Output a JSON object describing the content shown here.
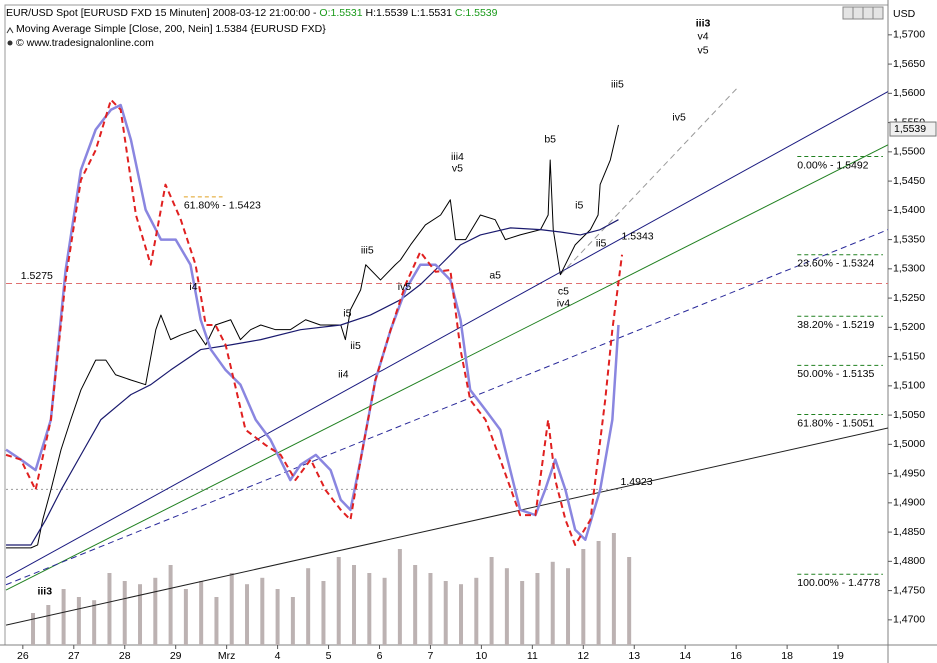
{
  "chart_data": {
    "type": "line",
    "header": {
      "instrument": "EUR/USD Spot [EURUSD FXD  15 Minuten] 2008-03-12 21:00:00 - ",
      "open": "O:1.5531",
      "high_low": " H:1.5539 L:1.5531 ",
      "close": "C:1.5539",
      "indicator": "Moving Average Simple [Close, 200, Nein] 1.5384 {EURUSD FXD}",
      "source": "© www.tradesignalonline.com"
    },
    "axis_unit": "USD",
    "xlim": [
      -0.35,
      16.98
    ],
    "ylim": [
      1.4657,
      1.5751
    ],
    "y2lim": [
      0,
      400
    ],
    "xticks": [
      {
        "value": 0,
        "label": "26"
      },
      {
        "value": 1,
        "label": "27"
      },
      {
        "value": 2,
        "label": "28"
      },
      {
        "value": 3,
        "label": "29"
      },
      {
        "value": 4,
        "label": "Mrz"
      },
      {
        "value": 5,
        "label": "4"
      },
      {
        "value": 6,
        "label": "5"
      },
      {
        "value": 7,
        "label": "6"
      },
      {
        "value": 8,
        "label": "7"
      },
      {
        "value": 9,
        "label": "10"
      },
      {
        "value": 10,
        "label": "11"
      },
      {
        "value": 11,
        "label": "12"
      },
      {
        "value": 12,
        "label": "13"
      },
      {
        "value": 13,
        "label": "14"
      },
      {
        "value": 14,
        "label": "16"
      },
      {
        "value": 15,
        "label": "18"
      },
      {
        "value": 16,
        "label": "19"
      }
    ],
    "yticks": [
      {
        "value": 1.47,
        "label": "1,4700"
      },
      {
        "value": 1.475,
        "label": "1,4750"
      },
      {
        "value": 1.48,
        "label": "1,4800"
      },
      {
        "value": 1.485,
        "label": "1,4850"
      },
      {
        "value": 1.49,
        "label": "1,4900"
      },
      {
        "value": 1.495,
        "label": "1,4950"
      },
      {
        "value": 1.5,
        "label": "1,5000"
      },
      {
        "value": 1.505,
        "label": "1,5050"
      },
      {
        "value": 1.51,
        "label": "1,5100"
      },
      {
        "value": 1.515,
        "label": "1,5150"
      },
      {
        "value": 1.52,
        "label": "1,5200"
      },
      {
        "value": 1.525,
        "label": "1,5250"
      },
      {
        "value": 1.53,
        "label": "1,5300"
      },
      {
        "value": 1.535,
        "label": "1,5350"
      },
      {
        "value": 1.54,
        "label": "1,5400"
      },
      {
        "value": 1.545,
        "label": "1,5450"
      },
      {
        "value": 1.55,
        "label": "1,5500"
      },
      {
        "value": 1.555,
        "label": "1,5550"
      },
      {
        "value": 1.56,
        "label": "1,5600"
      },
      {
        "value": 1.565,
        "label": "1,5650"
      },
      {
        "value": 1.57,
        "label": "1,5700"
      }
    ],
    "last_price": {
      "value": 1.5539,
      "label": "1,5539"
    },
    "series": [
      {
        "color": "#000000",
        "width": 1,
        "style": "solid",
        "x": [
          -0.33,
          0.16,
          0.29,
          0.39,
          0.55,
          0.75,
          0.94,
          1.14,
          1.43,
          1.63,
          1.82,
          2.12,
          2.41,
          2.61,
          2.71,
          2.9,
          3.1,
          3.39,
          3.59,
          3.78,
          4.08,
          4.27,
          4.47,
          4.67,
          4.96,
          5.25,
          5.55,
          5.84,
          6.24,
          6.33,
          6.43,
          6.63,
          6.73,
          7.02,
          7.31,
          7.41,
          7.61,
          7.9,
          8.2,
          8.39,
          8.49,
          8.69,
          8.98,
          9.27,
          9.47,
          9.76,
          10.16,
          10.31,
          10.35,
          10.41,
          10.55,
          10.84,
          11.14,
          11.29,
          11.33,
          11.53,
          11.69
        ],
        "values": [
          1.4823,
          1.4823,
          1.4828,
          1.4871,
          1.4922,
          1.4991,
          1.5042,
          1.5093,
          1.5144,
          1.5144,
          1.5119,
          1.511,
          1.5102,
          1.5196,
          1.5221,
          1.5179,
          1.5187,
          1.5196,
          1.517,
          1.5204,
          1.5213,
          1.5179,
          1.5196,
          1.5204,
          1.5196,
          1.5196,
          1.5213,
          1.5204,
          1.5204,
          1.5179,
          1.523,
          1.5264,
          1.5307,
          1.5281,
          1.5307,
          1.5315,
          1.5341,
          1.5375,
          1.5392,
          1.5418,
          1.535,
          1.535,
          1.5392,
          1.5384,
          1.535,
          1.5358,
          1.5367,
          1.5392,
          1.5486,
          1.5367,
          1.529,
          1.5341,
          1.5367,
          1.5392,
          1.5444,
          1.5486,
          1.5546
        ]
      },
      {
        "color": "#1a1a6e",
        "width": 1.2,
        "style": "solid",
        "x": [
          -0.33,
          0.16,
          0.45,
          0.75,
          1.14,
          1.53,
          2.12,
          2.51,
          2.9,
          3.49,
          4.08,
          4.67,
          5.45,
          6.24,
          6.82,
          7.41,
          7.8,
          8.2,
          8.59,
          8.98,
          9.57,
          10.16,
          10.55,
          10.94,
          11.33,
          11.69
        ],
        "values": [
          1.4828,
          1.4828,
          1.4871,
          1.4922,
          1.4982,
          1.5042,
          1.5085,
          1.5102,
          1.5127,
          1.5162,
          1.517,
          1.5179,
          1.5196,
          1.5204,
          1.5221,
          1.5247,
          1.5273,
          1.5307,
          1.5341,
          1.5358,
          1.537,
          1.5367,
          1.5363,
          1.5358,
          1.5367,
          1.5384
        ]
      },
      {
        "color": "#8a86e0",
        "width": 2.5,
        "style": "solid",
        "x": [
          -0.33,
          -0.04,
          0.25,
          0.55,
          0.84,
          1.14,
          1.43,
          1.73,
          1.92,
          2.12,
          2.41,
          2.71,
          3.0,
          3.29,
          3.49,
          3.69,
          3.98,
          4.27,
          4.57,
          4.86,
          5.25,
          5.45,
          5.75,
          6.04,
          6.24,
          6.43,
          6.63,
          6.92,
          7.22,
          7.51,
          7.8,
          8.1,
          8.39,
          8.59,
          8.78,
          9.08,
          9.37,
          9.76,
          10.06,
          10.25,
          10.45,
          10.65,
          10.84,
          11.04,
          11.33,
          11.57,
          11.69
        ],
        "values": [
          1.4991,
          1.4974,
          1.4956,
          1.5042,
          1.5298,
          1.5469,
          1.5538,
          1.5572,
          1.558,
          1.5521,
          1.5401,
          1.535,
          1.535,
          1.5307,
          1.5213,
          1.5162,
          1.5127,
          1.5102,
          1.5042,
          1.5008,
          1.4939,
          1.4965,
          1.4982,
          1.4956,
          1.4905,
          1.4888,
          1.4974,
          1.511,
          1.5196,
          1.5264,
          1.5307,
          1.5307,
          1.5281,
          1.5213,
          1.5093,
          1.5059,
          1.5025,
          1.4888,
          1.4879,
          1.4922,
          1.4974,
          1.4922,
          1.4854,
          1.4837,
          1.4922,
          1.5042,
          1.5204
        ]
      },
      {
        "color": "#e02020",
        "width": 2,
        "style": "dashed",
        "x": [
          -0.33,
          -0.04,
          0.25,
          0.55,
          0.84,
          1.14,
          1.43,
          1.73,
          1.92,
          2.22,
          2.51,
          2.8,
          3.1,
          3.39,
          3.59,
          3.78,
          3.98,
          4.37,
          4.76,
          5.06,
          5.35,
          5.65,
          5.94,
          6.24,
          6.43,
          6.63,
          6.92,
          7.22,
          7.51,
          7.8,
          8.1,
          8.39,
          8.59,
          8.78,
          9.08,
          9.37,
          9.76,
          10.06,
          10.31,
          10.45,
          10.65,
          10.84,
          11.14,
          11.43,
          11.57,
          11.76
        ],
        "values": [
          1.4982,
          1.4974,
          1.4922,
          1.5042,
          1.5281,
          1.5452,
          1.5503,
          1.5589,
          1.5572,
          1.5392,
          1.5307,
          1.5444,
          1.5384,
          1.5307,
          1.5204,
          1.5204,
          1.517,
          1.5025,
          1.4999,
          1.4982,
          1.4939,
          1.4974,
          1.4922,
          1.4888,
          1.4871,
          1.4974,
          1.511,
          1.5196,
          1.5273,
          1.5329,
          1.5295,
          1.5298,
          1.5162,
          1.5076,
          1.5042,
          1.4974,
          1.4879,
          1.4879,
          1.5042,
          1.4939,
          1.4871,
          1.4828,
          1.4871,
          1.5076,
          1.5196,
          1.5324
        ]
      }
    ],
    "volume": {
      "color": "#bcb2b2",
      "axis": "y2",
      "x": [
        0.2,
        0.5,
        0.8,
        1.1,
        1.4,
        1.7,
        2.0,
        2.3,
        2.6,
        2.9,
        3.2,
        3.5,
        3.8,
        4.1,
        4.4,
        4.7,
        5.0,
        5.3,
        5.6,
        5.9,
        6.2,
        6.5,
        6.8,
        7.1,
        7.4,
        7.7,
        8.0,
        8.3,
        8.6,
        8.9,
        9.2,
        9.5,
        9.8,
        10.1,
        10.4,
        10.7,
        11.0,
        11.3,
        11.6,
        11.9
      ],
      "values": [
        20,
        25,
        35,
        30,
        28,
        45,
        40,
        38,
        42,
        50,
        35,
        40,
        30,
        45,
        38,
        42,
        35,
        30,
        48,
        40,
        55,
        50,
        45,
        42,
        60,
        50,
        45,
        40,
        38,
        42,
        55,
        48,
        40,
        45,
        52,
        48,
        60,
        65,
        70,
        55
      ]
    },
    "trendlines": [
      {
        "color": "#1a1a80",
        "style": "solid",
        "x": [
          -0.33,
          16.98
        ],
        "values": [
          1.4772,
          1.5603
        ]
      },
      {
        "color": "#208020",
        "style": "solid",
        "x": [
          -0.33,
          16.98
        ],
        "values": [
          1.4751,
          1.5512
        ]
      },
      {
        "color": "#2a2a9a",
        "style": "dashed",
        "x": [
          -0.33,
          16.98
        ],
        "values": [
          1.476,
          1.5367
        ]
      },
      {
        "color": "#202020",
        "style": "solid",
        "x": [
          -0.33,
          16.98
        ],
        "values": [
          1.4691,
          1.5028
        ]
      },
      {
        "color": "#999999",
        "style": "dashed",
        "x": [
          10.55,
          14.02
        ],
        "values": [
          1.529,
          1.5609
        ]
      }
    ],
    "levels": [
      {
        "value": 1.5275,
        "color": "#e07070",
        "style": "dashed",
        "x": [
          -0.33,
          16.98
        ],
        "label_x": -0.04
      },
      {
        "value": 1.4923,
        "color": "#999999",
        "style": "dotted",
        "x": [
          -0.33,
          11.76
        ],
        "label_x": 11.73
      },
      {
        "value": 1.5343,
        "color": "#333333",
        "style": "none",
        "x": [
          11.75,
          11.75
        ],
        "label_x": 11.75
      }
    ],
    "fib_levels": [
      {
        "label": "0.00% - 1.5492",
        "value": 1.5492,
        "color": "#208020",
        "x": [
          15.2,
          16.88
        ]
      },
      {
        "label": "23.60% - 1.5324",
        "value": 1.5324,
        "color": "#208020",
        "x": [
          15.2,
          16.88
        ]
      },
      {
        "label": "38.20% - 1.5219",
        "value": 1.5219,
        "color": "#208020",
        "x": [
          15.2,
          16.88
        ]
      },
      {
        "label": "50.00% - 1.5135",
        "value": 1.5135,
        "color": "#208020",
        "x": [
          15.2,
          16.88
        ]
      },
      {
        "label": "61.80% - 1.5051",
        "value": 1.5051,
        "color": "#208020",
        "x": [
          15.2,
          16.88
        ]
      },
      {
        "label": "100.00% - 1.4778",
        "value": 1.4778,
        "color": "#208020",
        "x": [
          15.2,
          16.88
        ]
      },
      {
        "label": "61.80% - 1.5423",
        "value": 1.5423,
        "color": "#e0a020",
        "x": [
          3.16,
          3.92
        ]
      }
    ],
    "annotations": [
      {
        "text": "iii3",
        "x": 0.43,
        "y": 1.4748,
        "color": "#208020",
        "bold": true
      },
      {
        "text": "i4",
        "x": 3.35,
        "y": 1.5269,
        "color": "#1a1a8e",
        "bold": false
      },
      {
        "text": "ii4",
        "x": 6.29,
        "y": 1.5119,
        "color": "#1a1a8e",
        "bold": false
      },
      {
        "text": "i5",
        "x": 6.37,
        "y": 1.5223,
        "color": "#1a1a8e",
        "bold": false
      },
      {
        "text": "ii5",
        "x": 6.53,
        "y": 1.5168,
        "color": "#1a1a8e",
        "bold": false
      },
      {
        "text": "iii5",
        "x": 6.76,
        "y": 1.5331,
        "color": "#1a1a8e",
        "bold": false
      },
      {
        "text": "iv5",
        "x": 7.49,
        "y": 1.5269,
        "color": "#1a1a8e",
        "bold": false
      },
      {
        "text": "iii4",
        "x": 8.53,
        "y": 1.5491,
        "color": "#1a1a8e",
        "bold": false
      },
      {
        "text": "v5",
        "x": 8.53,
        "y": 1.5471,
        "color": "#1a1a8e",
        "bold": false
      },
      {
        "text": "a5",
        "x": 9.27,
        "y": 1.5288,
        "color": "#1a1a8e",
        "bold": false
      },
      {
        "text": "b5",
        "x": 10.35,
        "y": 1.5521,
        "color": "#1a1a8e",
        "bold": false
      },
      {
        "text": "c5",
        "x": 10.61,
        "y": 1.5261,
        "color": "#1a1a8e",
        "bold": false
      },
      {
        "text": "iv4",
        "x": 10.61,
        "y": 1.524,
        "color": "#1a1a8e",
        "bold": false
      },
      {
        "text": "i5",
        "x": 10.92,
        "y": 1.5408,
        "color": "#1a1a8e",
        "bold": false
      },
      {
        "text": "ii5",
        "x": 11.35,
        "y": 1.5343,
        "color": "#1a1a8e",
        "bold": false
      },
      {
        "text": "iii5",
        "x": 11.67,
        "y": 1.5615,
        "color": "#1a1a8e",
        "bold": false
      },
      {
        "text": "iv5",
        "x": 12.88,
        "y": 1.5558,
        "color": "#1a1a8e",
        "bold": false
      },
      {
        "text": "iii3",
        "x": 13.35,
        "y": 1.5719,
        "color": "#208020",
        "bold": true
      },
      {
        "text": "v4",
        "x": 13.35,
        "y": 1.5697,
        "color": "#1a1a8e",
        "bold": false
      },
      {
        "text": "v5",
        "x": 13.35,
        "y": 1.5673,
        "color": "#1a1a8e",
        "bold": false
      }
    ]
  }
}
